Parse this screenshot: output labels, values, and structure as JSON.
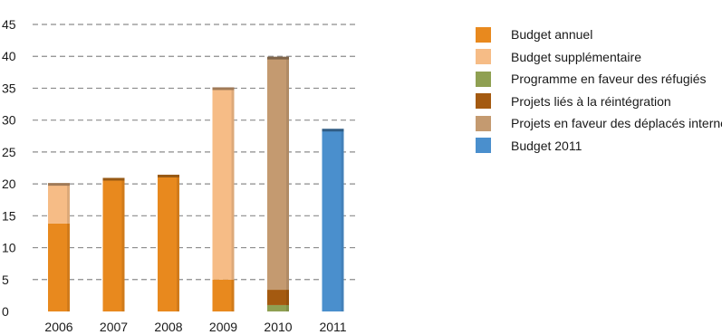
{
  "chart_data": {
    "type": "bar",
    "stacked": true,
    "categories": [
      "2006",
      "2007",
      "2008",
      "2009",
      "2010",
      "2011"
    ],
    "ylim": [
      0,
      45
    ],
    "yticks": [
      0,
      5,
      10,
      15,
      20,
      25,
      30,
      35,
      40,
      45
    ],
    "grid": "dashed horizontal",
    "legend_position": "right",
    "series": [
      {
        "name": "Budget annuel",
        "color": "#E8891E",
        "values": [
          13.8,
          20.8,
          21.3,
          5.0,
          0,
          0
        ]
      },
      {
        "name": "Budget supplémentaire",
        "color": "#F6BC86",
        "values": [
          6.2,
          0,
          0,
          30.0,
          0,
          0
        ]
      },
      {
        "name": "Programme en faveur des réfugiés",
        "color": "#8FA052",
        "values": [
          0,
          0,
          0,
          0,
          1.0,
          0
        ]
      },
      {
        "name": "Projets liés à la réintégration",
        "color": "#A45A10",
        "values": [
          0,
          0,
          0,
          0,
          2.4,
          0
        ]
      },
      {
        "name": "Projets en faveur des déplacés internes",
        "color": "#C49A70",
        "values": [
          0,
          0,
          0,
          0,
          36.4,
          0
        ]
      },
      {
        "name": "Budget 2011",
        "color": "#4A8FCD",
        "values": [
          0,
          0,
          0,
          0,
          0,
          28.5
        ]
      }
    ]
  }
}
